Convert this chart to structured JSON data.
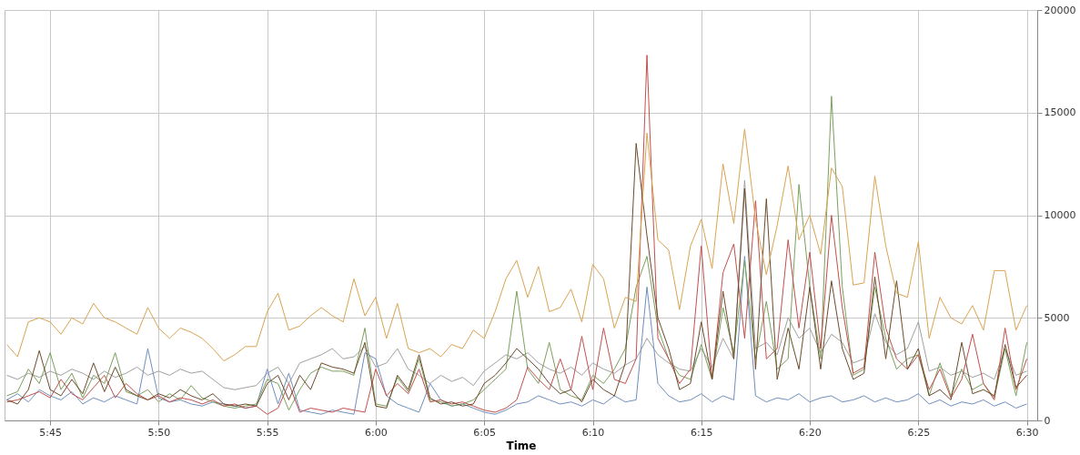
{
  "chart_data": {
    "type": "line",
    "xlabel": "Time",
    "x": [
      5.7167,
      5.725,
      5.7333,
      5.7417,
      5.75,
      5.7583,
      5.7667,
      5.775,
      5.7833,
      5.7917,
      5.8,
      5.8083,
      5.8167,
      5.825,
      5.8333,
      5.8417,
      5.85,
      5.8583,
      5.8667,
      5.875,
      5.8833,
      5.8917,
      5.9,
      5.9083,
      5.9167,
      5.925,
      5.9333,
      5.9417,
      5.95,
      5.9583,
      5.9667,
      5.975,
      5.9833,
      5.9917,
      6.0,
      6.0083,
      6.0167,
      6.025,
      6.0333,
      6.0417,
      6.05,
      6.0583,
      6.0667,
      6.075,
      6.0833,
      6.0917,
      6.1,
      6.1083,
      6.1167,
      6.125,
      6.1333,
      6.1417,
      6.15,
      6.1583,
      6.1667,
      6.175,
      6.1833,
      6.1917,
      6.2,
      6.2083,
      6.2167,
      6.225,
      6.2333,
      6.2417,
      6.25,
      6.2583,
      6.2667,
      6.275,
      6.2833,
      6.2917,
      6.3,
      6.3083,
      6.3167,
      6.325,
      6.3333,
      6.3417,
      6.35,
      6.3583,
      6.3667,
      6.375,
      6.3833,
      6.3917,
      6.4,
      6.4083,
      6.4167,
      6.425,
      6.4333,
      6.4417,
      6.45,
      6.4583,
      6.4667,
      6.475,
      6.4833,
      6.4917,
      6.5
    ],
    "series": [
      {
        "color": "#a0a0a0",
        "values": [
          2200,
          2000,
          2300,
          2100,
          2400,
          2200,
          2500,
          2300,
          2000,
          2400,
          2100,
          2300,
          2600,
          2200,
          2400,
          2200,
          2500,
          2300,
          2400,
          2000,
          1600,
          1500,
          1600,
          1700,
          2300,
          2600,
          1800,
          2800,
          3000,
          3200,
          3500,
          3000,
          3100,
          3600,
          2600,
          2800,
          3500,
          2500,
          2200,
          1800,
          2200,
          1900,
          2100,
          1700,
          2400,
          2800,
          3200,
          3000,
          3300,
          2800,
          2500,
          2300,
          2600,
          2200,
          2800,
          2500,
          2300,
          2700,
          3000,
          4000,
          3200,
          2800,
          2500,
          2400,
          3500,
          2600,
          4000,
          3000,
          11700,
          3500,
          3800,
          3200,
          5000,
          4000,
          4500,
          3300,
          4200,
          3800,
          2800,
          3000,
          5200,
          3800,
          3200,
          3500,
          4800,
          2400,
          2600,
          2200,
          2400,
          2100,
          2300,
          2000,
          3500,
          2200,
          2400
        ]
      },
      {
        "color": "#6f8fbf",
        "values": [
          1000,
          1300,
          900,
          1500,
          1200,
          1000,
          1400,
          800,
          1100,
          900,
          1200,
          1000,
          800,
          3500,
          1100,
          900,
          1000,
          800,
          700,
          900,
          800,
          700,
          600,
          700,
          2500,
          800,
          2300,
          500,
          400,
          300,
          500,
          400,
          300,
          3300,
          3000,
          1200,
          800,
          600,
          400,
          1800,
          1000,
          700,
          800,
          600,
          400,
          300,
          500,
          800,
          900,
          1200,
          1000,
          800,
          900,
          700,
          1000,
          800,
          1200,
          900,
          1000,
          6500,
          1800,
          1200,
          900,
          1000,
          1300,
          900,
          1200,
          1000,
          8000,
          1200,
          900,
          1100,
          1000,
          1300,
          900,
          1100,
          1200,
          900,
          1000,
          1200,
          900,
          1100,
          900,
          1000,
          1300,
          800,
          1000,
          700,
          900,
          800,
          1000,
          700,
          900,
          600,
          800
        ]
      },
      {
        "color": "#7ba05b",
        "values": [
          1200,
          1400,
          2500,
          1800,
          3300,
          1500,
          2300,
          1100,
          2200,
          1800,
          3300,
          1400,
          1200,
          1500,
          900,
          1300,
          1000,
          1700,
          1100,
          900,
          700,
          600,
          700,
          800,
          2000,
          1800,
          500,
          1500,
          2300,
          2600,
          2400,
          2400,
          2200,
          4500,
          800,
          700,
          2100,
          1400,
          3000,
          1000,
          900,
          700,
          800,
          1000,
          1500,
          2000,
          2500,
          6300,
          2500,
          1800,
          3800,
          1500,
          1200,
          1000,
          2200,
          1800,
          2500,
          3500,
          6500,
          8000,
          4500,
          3000,
          2200,
          2000,
          3700,
          2000,
          5500,
          3300,
          7800,
          3000,
          5800,
          2500,
          3000,
          11500,
          6500,
          3000,
          15800,
          6500,
          2200,
          2500,
          6500,
          4000,
          2500,
          3000,
          3200,
          1200,
          2800,
          1200,
          2500,
          1500,
          1800,
          1100,
          3500,
          1200,
          3800
        ]
      },
      {
        "color": "#c0504d",
        "values": [
          900,
          1000,
          1200,
          1400,
          1100,
          2000,
          1300,
          1000,
          1600,
          2200,
          1100,
          1800,
          1300,
          1000,
          1200,
          900,
          1100,
          1000,
          800,
          1000,
          700,
          800,
          600,
          700,
          300,
          600,
          1800,
          400,
          600,
          500,
          400,
          600,
          500,
          400,
          2500,
          1200,
          1800,
          1300,
          2500,
          900,
          1000,
          800,
          900,
          700,
          500,
          400,
          600,
          1000,
          2600,
          2000,
          1500,
          3000,
          1500,
          4100,
          1500,
          4500,
          2000,
          1800,
          3000,
          17800,
          4000,
          3000,
          1800,
          2500,
          8500,
          2000,
          7200,
          8600,
          4000,
          10700,
          3000,
          3500,
          8800,
          4500,
          8200,
          3500,
          10000,
          5500,
          2300,
          2600,
          8200,
          4500,
          3000,
          2500,
          3200,
          1500,
          2500,
          1100,
          2000,
          4200,
          1800,
          1000,
          4500,
          1500,
          3000
        ]
      },
      {
        "color": "#6b4c2a",
        "values": [
          1000,
          800,
          1500,
          3400,
          1500,
          1200,
          2000,
          1300,
          2800,
          1400,
          2600,
          1500,
          1200,
          1000,
          1300,
          1100,
          1500,
          1200,
          1000,
          1300,
          800,
          700,
          800,
          700,
          1800,
          2200,
          1000,
          2200,
          1500,
          2800,
          2600,
          2500,
          2300,
          3800,
          700,
          600,
          2200,
          1500,
          3200,
          1100,
          800,
          900,
          700,
          800,
          1800,
          2200,
          2800,
          3500,
          3000,
          2500,
          1800,
          1300,
          1500,
          900,
          2000,
          1500,
          1200,
          2800,
          13500,
          9000,
          5000,
          3500,
          1500,
          1800,
          4800,
          2000,
          6300,
          3000,
          11300,
          2500,
          10800,
          2000,
          4500,
          2500,
          6500,
          2500,
          6800,
          3500,
          2000,
          2300,
          7000,
          3000,
          6800,
          2500,
          3500,
          1200,
          1500,
          1000,
          3800,
          1300,
          1500,
          1200,
          3700,
          1600,
          2200
        ]
      },
      {
        "color": "#d9a350",
        "values": [
          3700,
          3100,
          4800,
          5000,
          4800,
          4200,
          5000,
          4700,
          5700,
          5000,
          4800,
          4500,
          4200,
          5500,
          4500,
          4000,
          4500,
          4300,
          4000,
          3500,
          2900,
          3200,
          3600,
          3600,
          5300,
          6200,
          4400,
          4600,
          5100,
          5500,
          5100,
          4800,
          6900,
          5100,
          6000,
          4000,
          5700,
          3500,
          3300,
          3500,
          3100,
          3700,
          3500,
          4400,
          4000,
          5300,
          6900,
          7800,
          6000,
          7500,
          5300,
          5500,
          6400,
          4800,
          7600,
          6900,
          4500,
          6000,
          5800,
          14000,
          8800,
          8300,
          5400,
          8500,
          9800,
          7400,
          12500,
          9600,
          14200,
          9800,
          7100,
          9500,
          12400,
          8800,
          10000,
          8100,
          12300,
          11400,
          6600,
          6700,
          11900,
          8500,
          6200,
          6000,
          8700,
          4000,
          6000,
          5000,
          4700,
          5600,
          4400,
          7300,
          7300,
          4400,
          5600
        ]
      }
    ],
    "xlim": [
      5.715,
      6.508
    ],
    "xticks": [
      {
        "value": 5.75,
        "label": "5:45"
      },
      {
        "value": 5.8333,
        "label": "5:50"
      },
      {
        "value": 5.9167,
        "label": "5:55"
      },
      {
        "value": 6.0,
        "label": "6:00"
      },
      {
        "value": 6.0833,
        "label": "6:05"
      },
      {
        "value": 6.1667,
        "label": "6:10"
      },
      {
        "value": 6.25,
        "label": "6:15"
      },
      {
        "value": 6.3333,
        "label": "6:20"
      },
      {
        "value": 6.4167,
        "label": "6:25"
      },
      {
        "value": 6.5,
        "label": "6:30"
      }
    ],
    "ylim": [
      0,
      20000
    ],
    "yticks": [
      0,
      5000,
      10000,
      15000,
      20000
    ],
    "grid": true,
    "legend": false,
    "marker": "none",
    "line_style": "solid"
  }
}
